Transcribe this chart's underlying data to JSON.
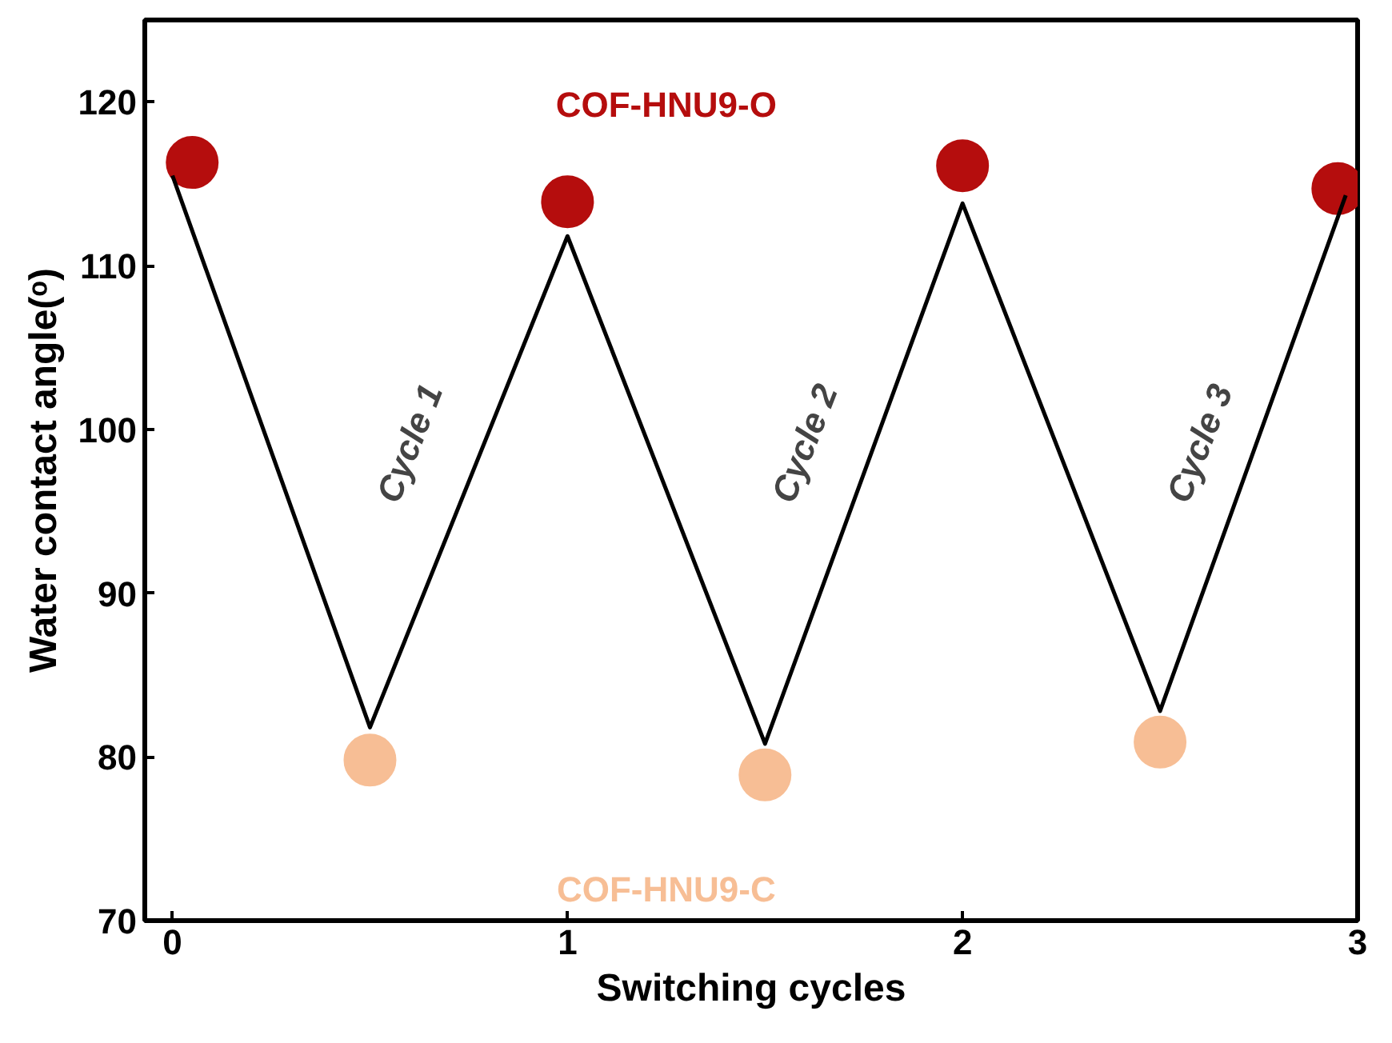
{
  "chart_data": {
    "type": "scatter",
    "xlabel": "Switching cycles",
    "ylabel": "Water contact angle(ᵒ)",
    "xlim": [
      -0.07,
      3.0
    ],
    "ylim": [
      70,
      125
    ],
    "xticks": [
      0,
      1,
      2,
      3
    ],
    "yticks": [
      70,
      80,
      90,
      100,
      110,
      120
    ],
    "grid": false,
    "marker": "circle",
    "series": [
      {
        "type": "line",
        "marker": "none",
        "color": "#000000",
        "x": [
          0,
          0.5,
          1,
          1.5,
          2,
          2.5,
          2.97
        ],
        "values": [
          115.5,
          81.8,
          111.8,
          80.8,
          113.8,
          82.8,
          114.3
        ]
      },
      {
        "name": "COF-HNU9-O",
        "color": "#b50d0d",
        "x": [
          0.05,
          1,
          2,
          2.95
        ],
        "values": [
          116.3,
          113.9,
          116.1,
          114.7
        ]
      },
      {
        "name": "COF-HNU9-C",
        "color": "#f7be95",
        "x": [
          0.5,
          1.5,
          2.5
        ],
        "values": [
          79.8,
          78.9,
          80.9
        ]
      }
    ],
    "annotations": [
      "Cycle 1",
      "Cycle 2",
      "Cycle 3"
    ]
  }
}
